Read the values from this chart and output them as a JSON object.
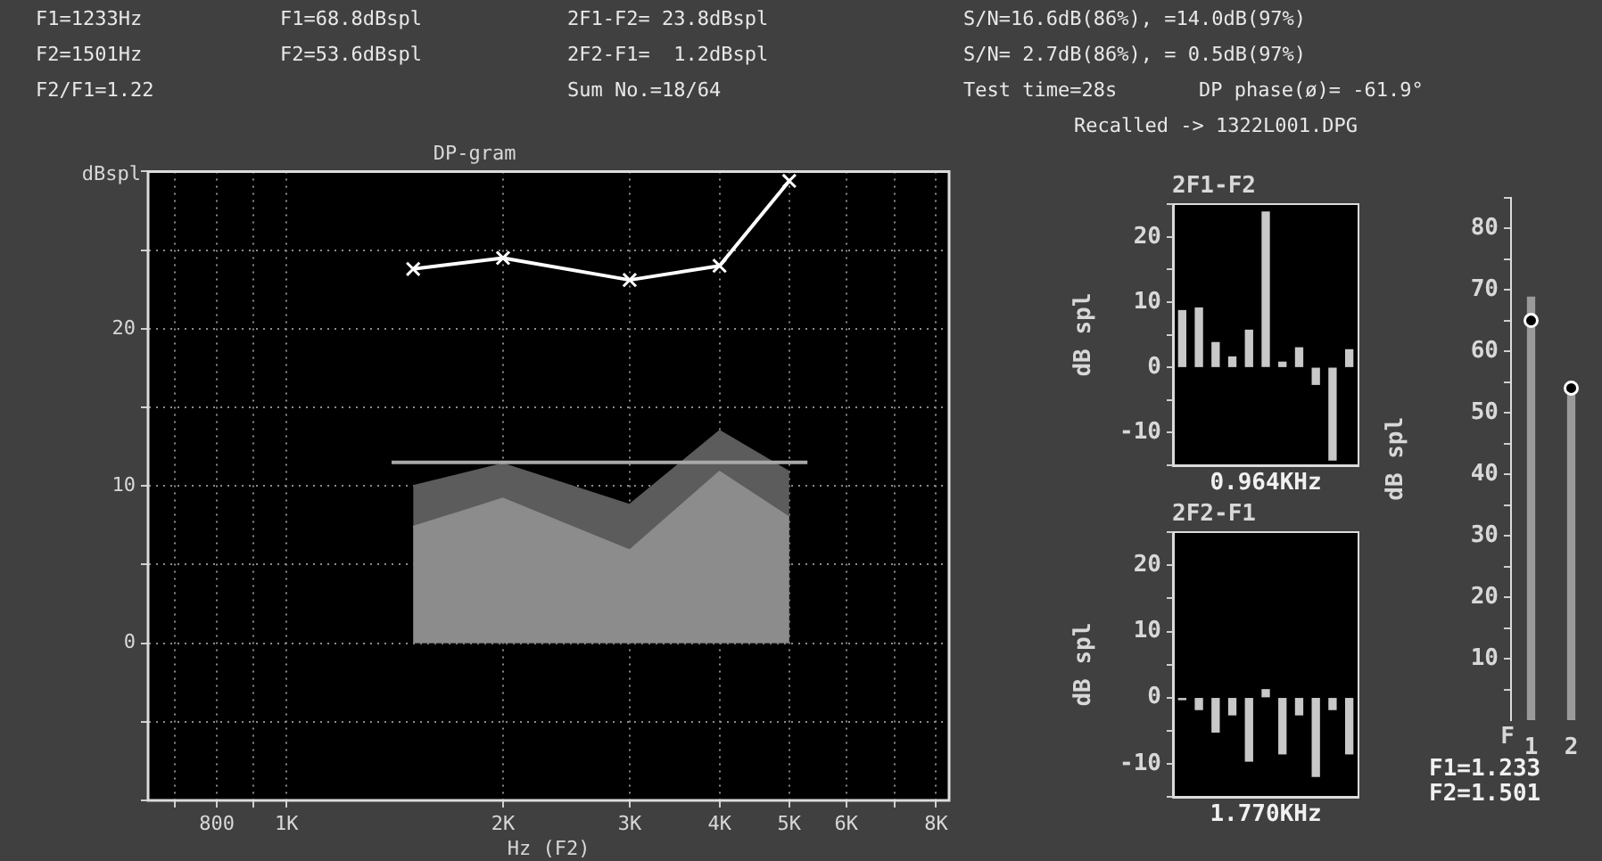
{
  "chart_data": [
    {
      "type": "line",
      "title": "DP-gram",
      "xlabel": "Hz (F2)",
      "ylabel": "dBspl",
      "log": "x",
      "grid": true,
      "xlim": [
        642,
        8340
      ],
      "xticks": [
        {
          "value": 700,
          "label": null
        },
        800,
        {
          "value": 900,
          "label": null
        },
        {
          "value": 1000,
          "label": "1K"
        },
        {
          "value": 2000,
          "label": "2K"
        },
        {
          "value": 3000,
          "label": "3K"
        },
        {
          "value": 4000,
          "label": "4K"
        },
        {
          "value": 5000,
          "label": "5K"
        },
        {
          "value": 6000,
          "label": "6K"
        },
        {
          "value": 7000,
          "label": null
        },
        {
          "value": 8000,
          "label": "8K"
        }
      ],
      "ylim": [
        -10,
        30
      ],
      "yticks": [
        {
          "value": -10,
          "label": null
        },
        {
          "value": -5,
          "label": null
        },
        0,
        {
          "value": 5,
          "label": null
        },
        10,
        {
          "value": 15,
          "label": null
        },
        20,
        {
          "value": 25,
          "label": null
        },
        {
          "value": 30,
          "label": null
        }
      ],
      "series": [
        {
          "type": "area",
          "color": "#5c5c5c",
          "x": [
            1500,
            2000,
            3000,
            4000,
            5000
          ],
          "values": [
            10.0,
            11.4,
            8.8,
            13.5,
            10.9
          ]
        },
        {
          "type": "area",
          "color": "#8c8c8c",
          "x": [
            1500,
            2000,
            3000,
            4000,
            5000
          ],
          "values": [
            7.4,
            9.2,
            5.9,
            10.9,
            8.0
          ]
        },
        {
          "type": "line",
          "color": "#a8a8a8",
          "x": [
            1400,
            5300
          ],
          "values": [
            11.5,
            11.5
          ],
          "marker": "none"
        },
        {
          "type": "line",
          "color": "#ffffff",
          "x": [
            1500,
            2000,
            3000,
            4000,
            5000
          ],
          "values": [
            23.8,
            24.5,
            23.1,
            24.0,
            29.4
          ],
          "marker": "cross"
        }
      ],
      "annotations": [
        "F1=1233Hz",
        "F1=68.8dBspl",
        "2F1-F2= 23.8dBspl",
        "S/N=16.6dB(86%), =14.0dB(97%)",
        "F2=1501Hz",
        "F2=53.6dBspl",
        "2F2-F1=  1.2dBspl",
        "S/N= 2.7dB(86%), = 0.5dB(97%)",
        "F2/F1=1.22",
        "Sum No.=18/64",
        "Test time=28s",
        "DP phase(ø)= -61.9°",
        "Recalled -> 1322L001.DPG"
      ]
    },
    {
      "type": "bar",
      "title": "2F1-F2",
      "xlabel": "0.964KHz",
      "ylabel": "dB spl",
      "categories": [
        null,
        null,
        null,
        null,
        null,
        null,
        null,
        null,
        null,
        null,
        null
      ],
      "ylim": [
        -15,
        25
      ],
      "yticks": [
        {
          "value": -15,
          "label": null
        },
        -10,
        {
          "value": -5,
          "label": null
        },
        0,
        {
          "value": 5,
          "label": null
        },
        10,
        {
          "value": 15,
          "label": null
        },
        20,
        {
          "value": 25,
          "label": null
        }
      ],
      "series": [
        {
          "color": "#c8c8c8",
          "values": [
            8.7,
            9.1,
            3.8,
            1.6,
            5.7,
            23.8,
            0.8,
            3.0,
            -2.6,
            -14.2,
            2.7
          ]
        }
      ]
    },
    {
      "type": "bar",
      "title": "2F2-F1",
      "xlabel": "1.770KHz",
      "ylabel": "dB spl",
      "categories": [
        null,
        null,
        null,
        null,
        null,
        null,
        null,
        null,
        null,
        null,
        null
      ],
      "ylim": [
        -15,
        25
      ],
      "yticks": [
        {
          "value": -15,
          "label": null
        },
        -10,
        {
          "value": -5,
          "label": null
        },
        0,
        {
          "value": 5,
          "label": null
        },
        10,
        {
          "value": 15,
          "label": null
        },
        20,
        {
          "value": 25,
          "label": null
        }
      ],
      "series": [
        {
          "color": "#c8c8c8",
          "values": [
            -0.3,
            -1.8,
            -5.2,
            -2.6,
            -9.6,
            1.2,
            -8.5,
            -2.6,
            -11.9,
            -1.8,
            -8.5
          ]
        }
      ]
    },
    {
      "type": "bar",
      "xlabel": "F",
      "ylabel": "dB spl",
      "categories": [
        "1",
        "2"
      ],
      "ylim": [
        0,
        85
      ],
      "yticks": [
        {
          "value": 5,
          "label": null
        },
        10,
        {
          "value": 15,
          "label": null
        },
        20,
        {
          "value": 25,
          "label": null
        },
        30,
        {
          "value": 35,
          "label": null
        },
        40,
        {
          "value": 45,
          "label": null
        },
        50,
        {
          "value": 55,
          "label": null
        },
        60,
        {
          "value": 65,
          "label": null
        },
        70,
        {
          "value": 75,
          "label": null
        },
        80,
        {
          "value": 85,
          "label": null
        }
      ],
      "series": [
        {
          "color": "#9a9a9a",
          "values": [
            68.8,
            53.6
          ]
        },
        {
          "type": "scatter",
          "color": "#ffffff",
          "x": [
            "1",
            "2"
          ],
          "values": [
            65,
            54
          ],
          "marker": "circle"
        }
      ],
      "annotations": [
        "F1=1.233",
        "F2=1.501"
      ]
    }
  ]
}
